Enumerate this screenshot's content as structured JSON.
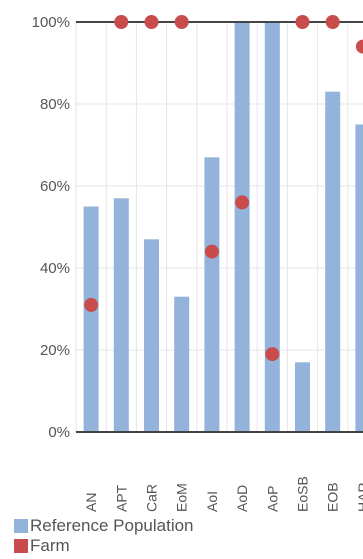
{
  "chart_data": {
    "type": "bar",
    "categories": [
      "AN",
      "APT",
      "CaR",
      "EoM",
      "AoI",
      "AoD",
      "AoP",
      "EoSB",
      "EOB",
      "HAR"
    ],
    "series": [
      {
        "name": "Reference Population",
        "kind": "bar",
        "color": "#93b3da",
        "values": [
          55,
          57,
          47,
          33,
          67,
          100,
          100,
          17,
          83,
          75
        ]
      },
      {
        "name": "Farm",
        "kind": "marker",
        "color": "#c94c4c",
        "values": [
          31,
          100,
          100,
          100,
          44,
          56,
          19,
          100,
          100,
          94
        ]
      }
    ],
    "yticks": [
      "0%",
      "20%",
      "40%",
      "60%",
      "80%",
      "100%"
    ],
    "ylim": [
      0,
      100
    ],
    "grid": true,
    "legend_placement": "bottom-left"
  }
}
